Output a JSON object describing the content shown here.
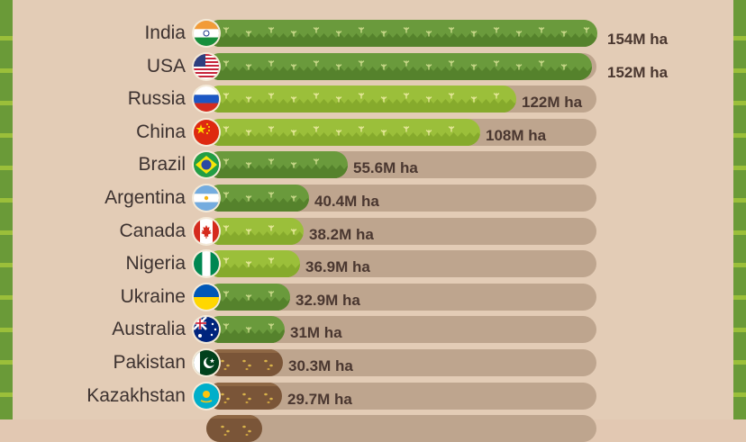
{
  "chart_data": {
    "type": "bar",
    "orientation": "horizontal",
    "unit": "M ha",
    "categories": [
      "India",
      "USA",
      "Russia",
      "China",
      "Brazil",
      "Argentina",
      "Canada",
      "Nigeria",
      "Ukraine",
      "Australia",
      "Pakistan",
      "Kazakhstan"
    ],
    "values": [
      154,
      152,
      122,
      108,
      55.6,
      40.4,
      38.2,
      36.9,
      32.9,
      31,
      30.3,
      29.7
    ],
    "value_labels": [
      "154M ha",
      "152M ha",
      "122M ha",
      "108M ha",
      "55.6M ha",
      "40.4M ha",
      "38.2M ha",
      "36.9M ha",
      "32.9M ha",
      "31M ha",
      "30.3M ha",
      "29.7M ha"
    ],
    "flag_icons": [
      "india-flag-icon",
      "usa-flag-icon",
      "russia-flag-icon",
      "china-flag-icon",
      "brazil-flag-icon",
      "argentina-flag-icon",
      "canada-flag-icon",
      "nigeria-flag-icon",
      "ukraine-flag-icon",
      "australia-flag-icon",
      "pakistan-flag-icon",
      "kazakhstan-flag-icon"
    ],
    "bar_styles": [
      "dark-green",
      "dark-green",
      "light-green",
      "light-green",
      "dark-green",
      "dark-green",
      "light-green",
      "light-green",
      "dark-green",
      "dark-green",
      "brown-soil",
      "brown-soil"
    ],
    "xlim": [
      0,
      154
    ],
    "grid": false,
    "legend": "none",
    "colors": {
      "dark-green": "#6a9a3c",
      "light-green": "#9bbf3a",
      "brown-soil": "#7a5538",
      "track": "#bea58e",
      "background": "#e3ccb6",
      "text": "#3d3230",
      "value_text": "#4a3730"
    }
  }
}
